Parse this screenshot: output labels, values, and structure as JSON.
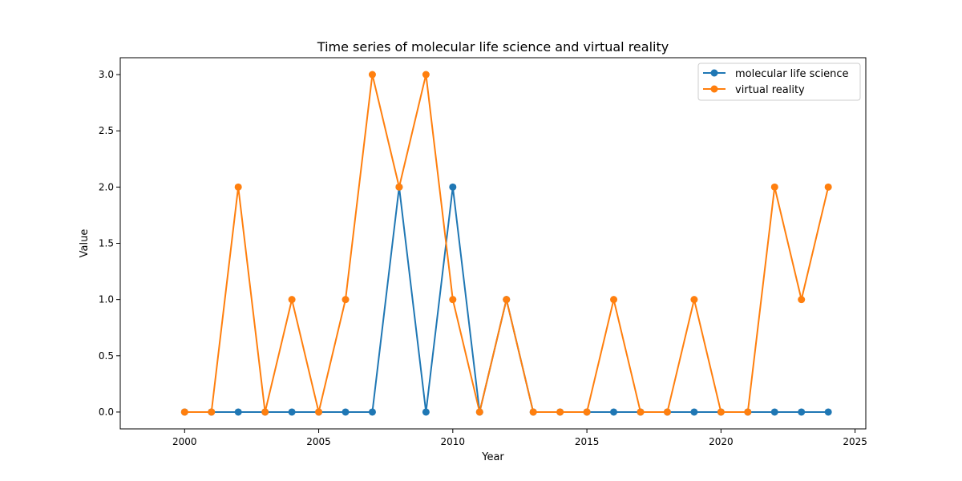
{
  "chart_data": {
    "type": "line",
    "title": "Time series of molecular life science and virtual reality",
    "xlabel": "Year",
    "ylabel": "Value",
    "x": [
      2000,
      2001,
      2002,
      2003,
      2004,
      2005,
      2006,
      2007,
      2008,
      2009,
      2010,
      2011,
      2012,
      2013,
      2014,
      2015,
      2016,
      2017,
      2018,
      2019,
      2020,
      2021,
      2022,
      2023,
      2024
    ],
    "xlim": [
      1997.6,
      2025.4
    ],
    "ylim": [
      -0.15,
      3.15
    ],
    "xticks": [
      2000,
      2005,
      2010,
      2015,
      2020,
      2025
    ],
    "yticks": [
      0.0,
      0.5,
      1.0,
      1.5,
      2.0,
      2.5,
      3.0
    ],
    "xtick_labels": [
      "2000",
      "2005",
      "2010",
      "2015",
      "2020",
      "2025"
    ],
    "ytick_labels": [
      "0.0",
      "0.5",
      "1.0",
      "1.5",
      "2.0",
      "2.5",
      "3.0"
    ],
    "legend_position": "top-right",
    "grid": false,
    "series": [
      {
        "name": "molecular life science",
        "color": "#1f77b4",
        "values": [
          0,
          0,
          0,
          0,
          0,
          0,
          0,
          0,
          2,
          0,
          2,
          0,
          1,
          0,
          0,
          0,
          0,
          0,
          0,
          0,
          0,
          0,
          0,
          0,
          0
        ]
      },
      {
        "name": "virtual reality",
        "color": "#ff7f0e",
        "values": [
          0,
          0,
          2,
          0,
          1,
          0,
          1,
          3,
          2,
          3,
          1,
          0,
          1,
          0,
          0,
          0,
          1,
          0,
          0,
          1,
          0,
          0,
          2,
          1,
          2
        ]
      }
    ]
  }
}
